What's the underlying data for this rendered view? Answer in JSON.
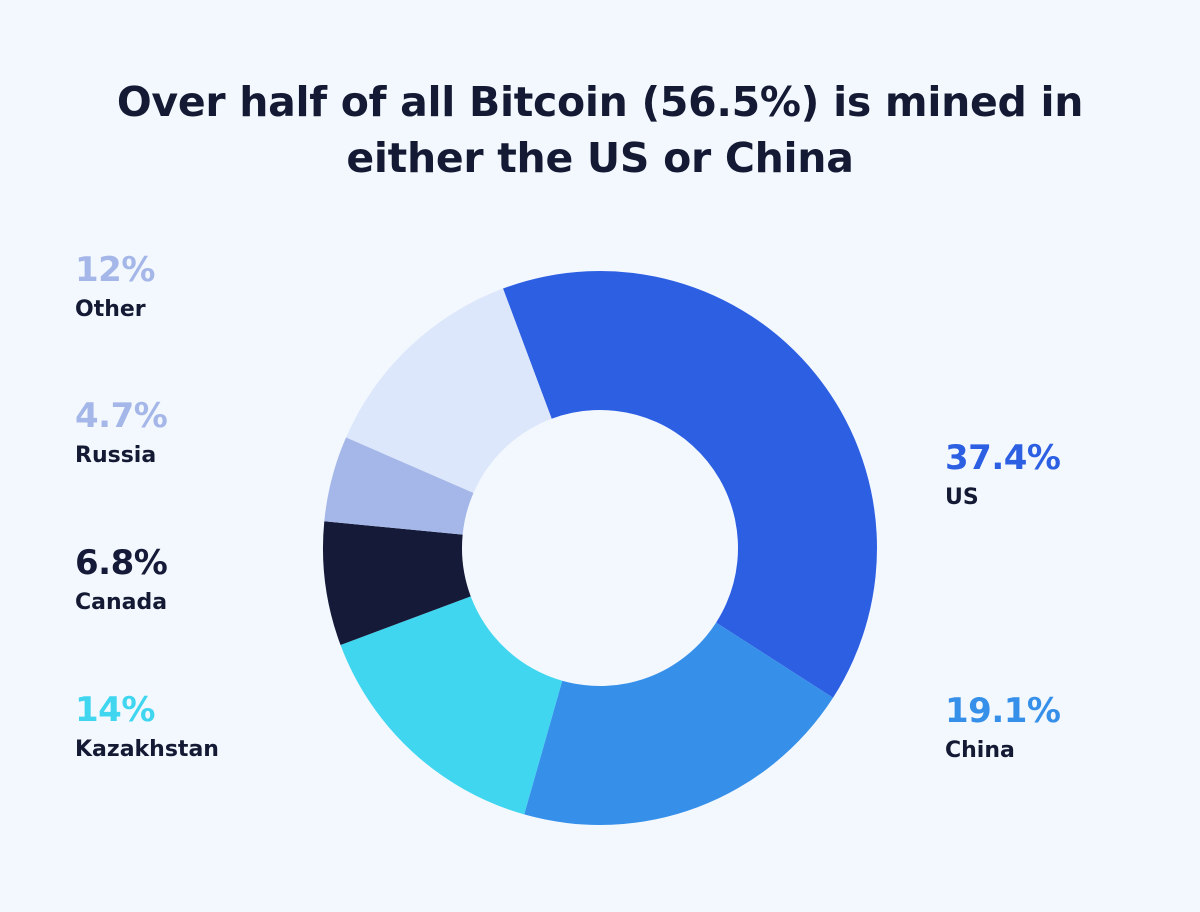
{
  "title_line1": "Over half of all Bitcoin (56.5%) is mined in",
  "title_line2": "either the US or China",
  "chart_data": {
    "type": "pie",
    "donut": true,
    "title": "Over half of all Bitcoin (56.5%) is mined in either the US or China",
    "slices": [
      {
        "label": "US",
        "value": 37.4,
        "display": "37.4%",
        "color": "#2d5fe3"
      },
      {
        "label": "China",
        "value": 19.1,
        "display": "19.1%",
        "color": "#3690ea"
      },
      {
        "label": "Kazakhstan",
        "value": 14,
        "display": "14%",
        "color": "#40d6f0"
      },
      {
        "label": "Canada",
        "value": 6.8,
        "display": "6.8%",
        "color": "#141a38"
      },
      {
        "label": "Russia",
        "value": 4.7,
        "display": "4.7%",
        "color": "#a5b7e8"
      },
      {
        "label": "Other",
        "value": 12,
        "display": "12%",
        "color": "#dce7fb"
      }
    ],
    "label_colors": {
      "US": "#2d5fe3",
      "China": "#3690ea",
      "Kazakhstan": "#40d6f0",
      "Canada": "#141a38",
      "Russia": "#a5b7e8",
      "Other": "#a5b7e8"
    },
    "legend": "split-left-right"
  }
}
